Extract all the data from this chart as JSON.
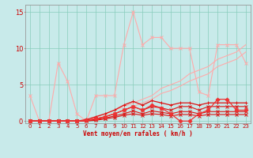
{
  "xlabel": "Vent moyen/en rafales ( km/h )",
  "background_color": "#c8eaea",
  "grid_color": "#88ccbb",
  "xlim": [
    -0.5,
    23.5
  ],
  "ylim": [
    -0.3,
    16
  ],
  "yticks": [
    0,
    5,
    10,
    15
  ],
  "xticks": [
    0,
    1,
    2,
    3,
    4,
    5,
    6,
    7,
    8,
    9,
    10,
    11,
    12,
    13,
    14,
    15,
    16,
    17,
    18,
    19,
    20,
    21,
    22,
    23
  ],
  "lines": [
    {
      "x": [
        0,
        1,
        2,
        3,
        4,
        5,
        6,
        7,
        8,
        9,
        10,
        11,
        12,
        13,
        14,
        15,
        16,
        17,
        18,
        19,
        20,
        21,
        22,
        23
      ],
      "y": [
        3.5,
        0,
        0,
        8,
        5.5,
        1,
        0,
        3.5,
        3.5,
        3.5,
        10.5,
        15,
        10.5,
        11.5,
        11.5,
        10,
        10,
        10,
        4,
        3.5,
        10.5,
        10.5,
        10.5,
        8
      ],
      "color": "#ffaaaa",
      "lw": 0.8,
      "marker": "x",
      "ms": 2.5
    },
    {
      "x": [
        0,
        1,
        2,
        3,
        4,
        5,
        6,
        7,
        8,
        9,
        10,
        11,
        12,
        13,
        14,
        15,
        16,
        17,
        18,
        19,
        20,
        21,
        22,
        23
      ],
      "y": [
        0,
        0,
        0,
        0,
        0,
        0,
        0,
        0.5,
        1.0,
        1.5,
        2.0,
        2.5,
        3.0,
        3.5,
        4.5,
        5.0,
        5.5,
        6.5,
        7.0,
        7.5,
        8.5,
        9.0,
        9.5,
        10.5
      ],
      "color": "#ffaaaa",
      "lw": 0.8,
      "marker": null,
      "ms": 0
    },
    {
      "x": [
        0,
        1,
        2,
        3,
        4,
        5,
        6,
        7,
        8,
        9,
        10,
        11,
        12,
        13,
        14,
        15,
        16,
        17,
        18,
        19,
        20,
        21,
        22,
        23
      ],
      "y": [
        0,
        0,
        0,
        0,
        0,
        0,
        0,
        0.3,
        0.6,
        1.0,
        1.5,
        2.0,
        2.5,
        3.0,
        3.8,
        4.2,
        4.8,
        5.5,
        6.0,
        6.5,
        7.5,
        8.0,
        8.5,
        9.5
      ],
      "color": "#ffaaaa",
      "lw": 0.8,
      "marker": null,
      "ms": 0
    },
    {
      "x": [
        0,
        1,
        2,
        3,
        4,
        5,
        6,
        7,
        8,
        9,
        10,
        11,
        12,
        13,
        14,
        15,
        16,
        17,
        18,
        19,
        20,
        21,
        22,
        23
      ],
      "y": [
        0,
        0,
        0,
        0,
        0,
        0,
        0.2,
        0.6,
        1.0,
        1.5,
        2.2,
        2.7,
        2.2,
        2.8,
        2.5,
        2.2,
        2.5,
        2.5,
        2.2,
        2.5,
        2.5,
        2.5,
        2.5,
        2.5
      ],
      "color": "#dd1111",
      "lw": 0.9,
      "marker": "+",
      "ms": 3.5
    },
    {
      "x": [
        0,
        1,
        2,
        3,
        4,
        5,
        6,
        7,
        8,
        9,
        10,
        11,
        12,
        13,
        14,
        15,
        16,
        17,
        18,
        19,
        20,
        21,
        22,
        23
      ],
      "y": [
        0,
        0,
        0,
        0,
        0,
        0,
        0.1,
        0.3,
        0.6,
        1.0,
        1.5,
        2.0,
        1.5,
        2.0,
        1.8,
        1.5,
        2.0,
        2.0,
        1.5,
        2.0,
        2.0,
        2.0,
        2.0,
        2.0
      ],
      "color": "#dd1111",
      "lw": 0.8,
      "marker": "x",
      "ms": 2.5
    },
    {
      "x": [
        0,
        1,
        2,
        3,
        4,
        5,
        6,
        7,
        8,
        9,
        10,
        11,
        12,
        13,
        14,
        15,
        16,
        17,
        18,
        19,
        20,
        21,
        22,
        23
      ],
      "y": [
        0,
        0,
        0,
        0,
        0,
        0,
        0.1,
        0.2,
        0.4,
        0.7,
        1.0,
        1.4,
        1.0,
        1.4,
        1.2,
        1.0,
        1.3,
        1.3,
        1.0,
        1.3,
        1.3,
        1.3,
        1.3,
        1.3
      ],
      "color": "#dd1111",
      "lw": 0.8,
      "marker": "x",
      "ms": 2.5
    },
    {
      "x": [
        0,
        1,
        2,
        3,
        4,
        5,
        6,
        7,
        8,
        9,
        10,
        11,
        12,
        13,
        14,
        15,
        16,
        17,
        18,
        19,
        20,
        21,
        22,
        23
      ],
      "y": [
        0,
        0,
        0,
        0,
        0,
        0,
        0,
        0.1,
        0.3,
        0.5,
        0.8,
        1.0,
        0.8,
        1.0,
        0.9,
        0.7,
        0.9,
        0.9,
        0.7,
        0.9,
        0.9,
        0.9,
        0.9,
        0.9
      ],
      "color": "#dd1111",
      "lw": 0.8,
      "marker": "x",
      "ms": 2.5
    },
    {
      "x": [
        0,
        1,
        2,
        3,
        4,
        5,
        6,
        7,
        8,
        9,
        10,
        11,
        12,
        13,
        14,
        15,
        16,
        17,
        18,
        19,
        20,
        21,
        22,
        23
      ],
      "y": [
        0,
        0,
        0,
        0,
        0,
        0,
        0.1,
        0.3,
        0.6,
        1.0,
        1.5,
        2.0,
        1.5,
        2.2,
        1.8,
        1.0,
        0,
        0,
        1.0,
        1.5,
        3.0,
        3.0,
        1.5,
        1.5
      ],
      "color": "#ee3333",
      "lw": 0.9,
      "marker": "D",
      "ms": 2.5
    }
  ]
}
